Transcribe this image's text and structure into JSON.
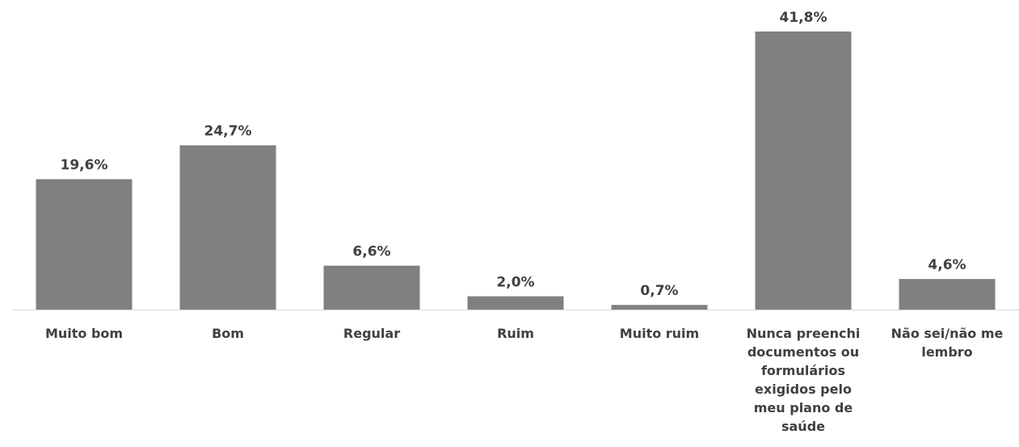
{
  "chart_data": {
    "type": "bar",
    "categories": [
      "Muito bom",
      "Bom",
      "Regular",
      "Ruim",
      "Muito ruim",
      "Nunca preenchi documentos ou formulários exigidos pelo meu plano de saúde",
      "Não sei/não me lembro"
    ],
    "values": [
      19.6,
      24.7,
      6.6,
      2.0,
      0.7,
      41.8,
      4.6
    ],
    "data_labels": [
      "19,6%",
      "24,7%",
      "6,6%",
      "2,0%",
      "0,7%",
      "41,8%",
      "4,6%"
    ],
    "ylim": [
      0,
      41.8
    ],
    "grid": false,
    "legend": "none",
    "bar_color": "#808080",
    "axis_color": "#d9d9d9",
    "text_color": "#404040"
  }
}
